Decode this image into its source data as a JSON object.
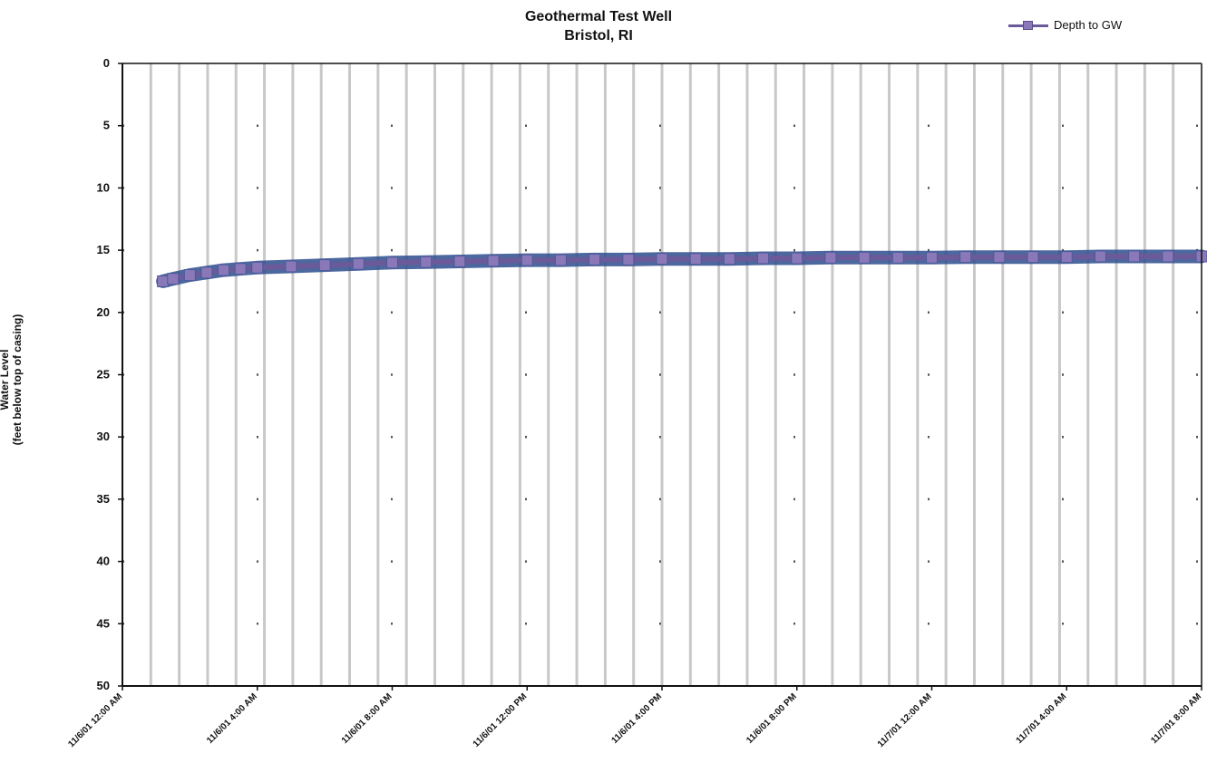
{
  "chart_data": {
    "type": "line",
    "title": "Geothermal Test Well",
    "subtitle": "Bristol, RI",
    "ylabel": "Water Level",
    "ylabel_sub": "(feet below top of casing)",
    "xlabel": "",
    "y_inverted": true,
    "ylim": [
      0,
      50
    ],
    "y_ticks": [
      0,
      5,
      10,
      15,
      20,
      25,
      30,
      35,
      40,
      45,
      50
    ],
    "y_tick_labels": [
      "0",
      "5",
      "10",
      "15",
      "20",
      "25",
      "30",
      "35",
      "40",
      "45",
      "50"
    ],
    "x_tick_labels": [
      "11/6/01 12:00 AM",
      "11/6/01 4:00 AM",
      "11/6/01 8:00 AM",
      "11/6/01 12:00 PM",
      "11/6/01 4:00 PM",
      "11/6/01 8:00 PM",
      "11/7/01 12:00 AM",
      "11/7/01 4:00 AM",
      "11/7/01 8:00 AM"
    ],
    "xlim_hours": [
      0,
      32
    ],
    "grid": "vertical lines and dotted horizontal",
    "legend_position": "top-right",
    "series": [
      {
        "name": "Depth to GW",
        "color": "#6a5a9a",
        "x_hours": [
          1.2,
          1.5,
          2,
          2.5,
          3,
          3.5,
          4,
          5,
          6,
          7,
          8,
          9,
          10,
          11,
          12,
          13,
          14,
          15,
          16,
          17,
          18,
          19,
          20,
          21,
          22,
          23,
          24,
          25,
          26,
          27,
          28,
          29,
          30,
          31,
          32
        ],
        "y": [
          17.5,
          17.3,
          17.0,
          16.8,
          16.6,
          16.5,
          16.4,
          16.3,
          16.2,
          16.1,
          16.0,
          15.95,
          15.9,
          15.85,
          15.8,
          15.8,
          15.75,
          15.75,
          15.7,
          15.7,
          15.7,
          15.65,
          15.65,
          15.6,
          15.6,
          15.6,
          15.6,
          15.55,
          15.55,
          15.55,
          15.55,
          15.5,
          15.5,
          15.5,
          15.5
        ]
      }
    ]
  }
}
